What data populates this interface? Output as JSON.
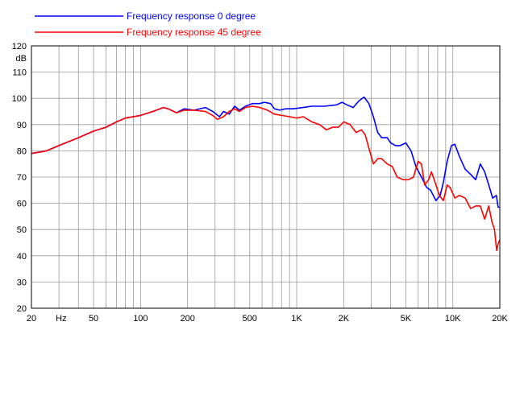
{
  "chart_data": {
    "type": "line",
    "x_scale": "log",
    "xlim": [
      20,
      20000
    ],
    "ylim": [
      20,
      120
    ],
    "y_unit_label": "dB",
    "x_unit_label": "Hz",
    "grid": true,
    "legend_position": "top-left",
    "x_tick_labels": [
      {
        "value": 20,
        "label": "20"
      },
      {
        "value": 50,
        "label": "50"
      },
      {
        "value": 100,
        "label": "100"
      },
      {
        "value": 200,
        "label": "200"
      },
      {
        "value": 500,
        "label": "500"
      },
      {
        "value": 1000,
        "label": "1K"
      },
      {
        "value": 2000,
        "label": "2K"
      },
      {
        "value": 5000,
        "label": "5K"
      },
      {
        "value": 10000,
        "label": "10K"
      },
      {
        "value": 20000,
        "label": "20K"
      }
    ],
    "y_ticks": [
      20,
      30,
      40,
      50,
      60,
      70,
      80,
      90,
      100,
      110,
      120
    ],
    "series": [
      {
        "name": "Frequency response 0 degree",
        "color": "#0000ff",
        "points": [
          [
            20,
            79
          ],
          [
            25,
            80
          ],
          [
            30,
            82
          ],
          [
            40,
            85
          ],
          [
            50,
            87.5
          ],
          [
            60,
            89
          ],
          [
            70,
            91
          ],
          [
            80,
            92.5
          ],
          [
            100,
            93.5
          ],
          [
            120,
            95
          ],
          [
            140,
            96.5
          ],
          [
            150,
            96
          ],
          [
            170,
            94.5
          ],
          [
            190,
            96
          ],
          [
            220,
            95.5
          ],
          [
            260,
            96.5
          ],
          [
            290,
            95
          ],
          [
            320,
            93
          ],
          [
            340,
            95
          ],
          [
            370,
            94
          ],
          [
            400,
            97
          ],
          [
            430,
            95.5
          ],
          [
            470,
            97
          ],
          [
            520,
            98
          ],
          [
            580,
            98
          ],
          [
            620,
            98.5
          ],
          [
            680,
            98
          ],
          [
            720,
            96
          ],
          [
            780,
            95.5
          ],
          [
            850,
            96
          ],
          [
            950,
            96
          ],
          [
            1100,
            96.5
          ],
          [
            1250,
            97
          ],
          [
            1500,
            97
          ],
          [
            1800,
            97.5
          ],
          [
            1950,
            98.5
          ],
          [
            2100,
            97.5
          ],
          [
            2300,
            96.5
          ],
          [
            2500,
            99
          ],
          [
            2700,
            100.5
          ],
          [
            2900,
            98
          ],
          [
            3100,
            93
          ],
          [
            3300,
            87
          ],
          [
            3500,
            85
          ],
          [
            3800,
            85
          ],
          [
            4000,
            83
          ],
          [
            4300,
            82
          ],
          [
            4600,
            82
          ],
          [
            5000,
            83
          ],
          [
            5400,
            80
          ],
          [
            5800,
            74
          ],
          [
            6300,
            70
          ],
          [
            6800,
            66
          ],
          [
            7200,
            65
          ],
          [
            7800,
            61
          ],
          [
            8300,
            63
          ],
          [
            8700,
            68
          ],
          [
            9200,
            76
          ],
          [
            9800,
            82
          ],
          [
            10300,
            82.5
          ],
          [
            11000,
            78
          ],
          [
            12000,
            73
          ],
          [
            13000,
            71
          ],
          [
            14000,
            69
          ],
          [
            15000,
            75
          ],
          [
            16000,
            72
          ],
          [
            17000,
            67
          ],
          [
            18000,
            62
          ],
          [
            19000,
            63
          ],
          [
            19500,
            58.5
          ],
          [
            20000,
            58.5
          ]
        ]
      },
      {
        "name": "Frequency response 45 degree",
        "color": "#ff0000",
        "points": [
          [
            20,
            79
          ],
          [
            25,
            80
          ],
          [
            30,
            82
          ],
          [
            40,
            85
          ],
          [
            50,
            87.5
          ],
          [
            60,
            89
          ],
          [
            70,
            91
          ],
          [
            80,
            92.5
          ],
          [
            100,
            93.5
          ],
          [
            120,
            95
          ],
          [
            140,
            96.5
          ],
          [
            150,
            96
          ],
          [
            170,
            94.5
          ],
          [
            190,
            95.5
          ],
          [
            220,
            95.5
          ],
          [
            260,
            95
          ],
          [
            290,
            93.5
          ],
          [
            310,
            92
          ],
          [
            340,
            93
          ],
          [
            370,
            95
          ],
          [
            400,
            96
          ],
          [
            430,
            95
          ],
          [
            470,
            96.5
          ],
          [
            520,
            97
          ],
          [
            580,
            96.5
          ],
          [
            650,
            95.5
          ],
          [
            720,
            94
          ],
          [
            800,
            93.5
          ],
          [
            900,
            93
          ],
          [
            1000,
            92.5
          ],
          [
            1100,
            93
          ],
          [
            1250,
            91
          ],
          [
            1400,
            90
          ],
          [
            1550,
            88
          ],
          [
            1700,
            89
          ],
          [
            1850,
            89
          ],
          [
            2000,
            91
          ],
          [
            2200,
            90
          ],
          [
            2400,
            87
          ],
          [
            2600,
            88
          ],
          [
            2750,
            86
          ],
          [
            2900,
            81
          ],
          [
            3100,
            75
          ],
          [
            3300,
            77
          ],
          [
            3500,
            77
          ],
          [
            3800,
            75
          ],
          [
            4100,
            74
          ],
          [
            4400,
            70
          ],
          [
            4800,
            69
          ],
          [
            5200,
            69
          ],
          [
            5600,
            70
          ],
          [
            6000,
            76
          ],
          [
            6300,
            75
          ],
          [
            6600,
            67
          ],
          [
            7000,
            69
          ],
          [
            7300,
            72
          ],
          [
            7700,
            68
          ],
          [
            8200,
            63
          ],
          [
            8700,
            61
          ],
          [
            9200,
            67
          ],
          [
            9600,
            66
          ],
          [
            10300,
            62
          ],
          [
            11000,
            63
          ],
          [
            12000,
            62
          ],
          [
            13000,
            58
          ],
          [
            14000,
            59
          ],
          [
            15000,
            59
          ],
          [
            16000,
            54
          ],
          [
            17000,
            59
          ],
          [
            17800,
            53
          ],
          [
            18500,
            50
          ],
          [
            19100,
            42
          ],
          [
            19600,
            45
          ],
          [
            20000,
            46
          ]
        ]
      }
    ]
  }
}
